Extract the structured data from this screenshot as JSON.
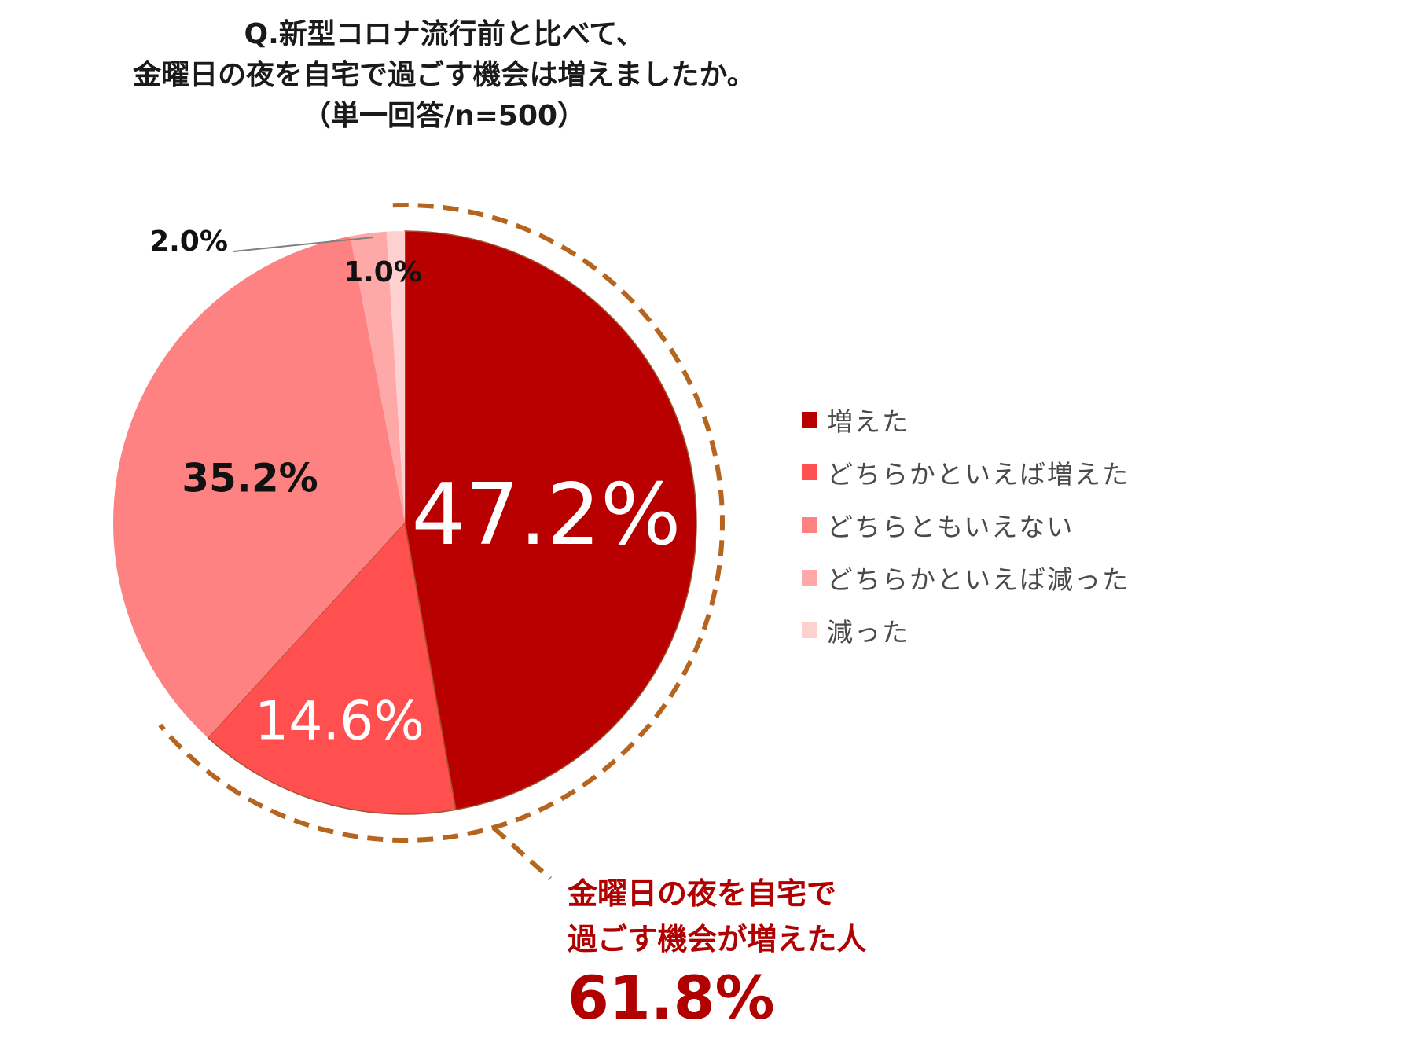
{
  "title": {
    "line1": "Q.新型コロナ流行前と比べて、",
    "line2": "金曜日の夜を自宅で過ごす機会は増えましたか。",
    "line3": "（単一回答/n=500）"
  },
  "chart_data": {
    "type": "pie",
    "title": "Q.新型コロナ流行前と比べて、金曜日の夜を自宅で過ごす機会は増えましたか。（単一回答/n=500）",
    "unit": "%",
    "start": "12 o'clock, clockwise",
    "legend_position": "right",
    "slices": [
      {
        "label": "増えた",
        "value": 47.2,
        "display": "47.2%",
        "color": "#b80000"
      },
      {
        "label": "どちらかといえば増えた",
        "value": 14.6,
        "display": "14.6%",
        "color": "#ff4f4f"
      },
      {
        "label": "どちらともいえない",
        "value": 35.2,
        "display": "35.2%",
        "color": "#ff8282"
      },
      {
        "label": "どちらかといえば減った",
        "value": 2.0,
        "display": "2.0%",
        "color": "#ffa8a8"
      },
      {
        "label": "減った",
        "value": 1.0,
        "display": "1.0%",
        "color": "#ffd0d0"
      }
    ],
    "highlight": {
      "line1": "金曜日の夜を自宅で",
      "line2": "過ごす機会が増えた人",
      "value_text": "61.8%",
      "value": 61.8,
      "color": "#b00000",
      "ring_color": "#b5651d"
    }
  }
}
